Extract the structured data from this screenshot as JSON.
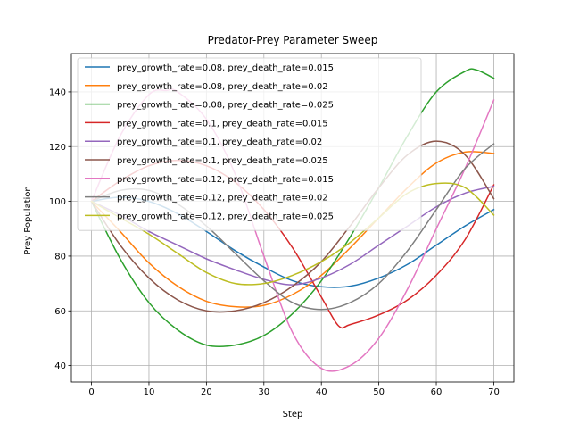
{
  "chart_data": {
    "type": "line",
    "title": "Predator-Prey Parameter Sweep",
    "xlabel": "Step",
    "ylabel": "Prey Population",
    "xlim": [
      -3.5,
      73.5
    ],
    "ylim": [
      34,
      154
    ],
    "xticks": [
      0,
      10,
      20,
      30,
      40,
      50,
      60,
      70
    ],
    "yticks": [
      40,
      60,
      80,
      100,
      120,
      140
    ],
    "grid": true,
    "legend_position": "upper-left",
    "series": [
      {
        "name": "prey_growth_rate=0.08, prey_death_rate=0.015",
        "color": "#1f77b4",
        "x": [
          0,
          5,
          10,
          15,
          20,
          25,
          30,
          35,
          40,
          45,
          50,
          55,
          60,
          65,
          70
        ],
        "y": [
          100,
          101.5,
          100,
          95.5,
          89,
          82,
          76,
          71,
          68.8,
          69,
          72,
          77,
          84,
          91,
          97
        ]
      },
      {
        "name": "prey_growth_rate=0.08, prey_death_rate=0.02",
        "color": "#ff7f0e",
        "x": [
          0,
          5,
          10,
          15,
          20,
          25,
          30,
          35,
          40,
          45,
          50,
          55,
          60,
          65,
          70
        ],
        "y": [
          100,
          89,
          77.5,
          69,
          63.5,
          61.5,
          62,
          66,
          73,
          83,
          94,
          105,
          114,
          118,
          117.5
        ]
      },
      {
        "name": "prey_growth_rate=0.08, prey_death_rate=0.025",
        "color": "#2ca02c",
        "x": [
          0,
          5,
          10,
          15,
          20,
          25,
          30,
          35,
          40,
          45,
          50,
          55,
          60,
          65,
          67,
          70
        ],
        "y": [
          100,
          79,
          63,
          53,
          47.5,
          47.5,
          51,
          59,
          71,
          87,
          105,
          124,
          140,
          147.5,
          148,
          145
        ]
      },
      {
        "name": "prey_growth_rate=0.1, prey_death_rate=0.015",
        "color": "#d62728",
        "x": [
          0,
          5,
          10,
          15,
          20,
          25,
          30,
          35,
          40,
          43,
          45,
          50,
          55,
          60,
          65,
          70
        ],
        "y": [
          100,
          107.5,
          113,
          115,
          113,
          107,
          97,
          83,
          65,
          54.5,
          55,
          58.5,
          64,
          73,
          86,
          106
        ]
      },
      {
        "name": "prey_growth_rate=0.1, prey_death_rate=0.02",
        "color": "#9467bd",
        "x": [
          0,
          5,
          10,
          15,
          20,
          25,
          30,
          35,
          40,
          45,
          50,
          55,
          60,
          65,
          70
        ],
        "y": [
          100,
          95,
          89,
          84,
          79,
          75,
          71.5,
          69.5,
          72,
          77,
          84,
          91,
          98,
          103,
          105.5
        ]
      },
      {
        "name": "prey_growth_rate=0.1, prey_death_rate=0.025",
        "color": "#8c564b",
        "x": [
          0,
          5,
          10,
          15,
          20,
          25,
          30,
          35,
          40,
          45,
          50,
          55,
          60,
          65,
          70
        ],
        "y": [
          100,
          84,
          72,
          64,
          60,
          60,
          63,
          69,
          78,
          91,
          105,
          117,
          122,
          117,
          101
        ]
      },
      {
        "name": "prey_growth_rate=0.12, prey_death_rate=0.015",
        "color": "#e377c2",
        "x": [
          0,
          5,
          10,
          13,
          15,
          20,
          25,
          30,
          35,
          40,
          45,
          50,
          55,
          60,
          65,
          70
        ],
        "y": [
          100,
          124,
          139,
          140.5,
          140,
          130,
          110,
          80,
          52,
          39,
          40,
          50,
          68,
          90,
          112,
          137
        ]
      },
      {
        "name": "prey_growth_rate=0.12, prey_death_rate=0.02",
        "color": "#7f7f7f",
        "x": [
          0,
          5,
          10,
          15,
          20,
          25,
          30,
          35,
          40,
          45,
          50,
          55,
          60,
          65,
          70
        ],
        "y": [
          100,
          104,
          104,
          99,
          91,
          81,
          71,
          63,
          60.5,
          63,
          70,
          82,
          97,
          112,
          121
        ]
      },
      {
        "name": "prey_growth_rate=0.12, prey_death_rate=0.025",
        "color": "#bcbd22",
        "x": [
          0,
          5,
          10,
          15,
          20,
          25,
          30,
          35,
          40,
          45,
          50,
          55,
          60,
          65,
          70
        ],
        "y": [
          100,
          94,
          88,
          81,
          74,
          70,
          70,
          73,
          78,
          85,
          94,
          103,
          106.5,
          105,
          95
        ]
      }
    ]
  }
}
